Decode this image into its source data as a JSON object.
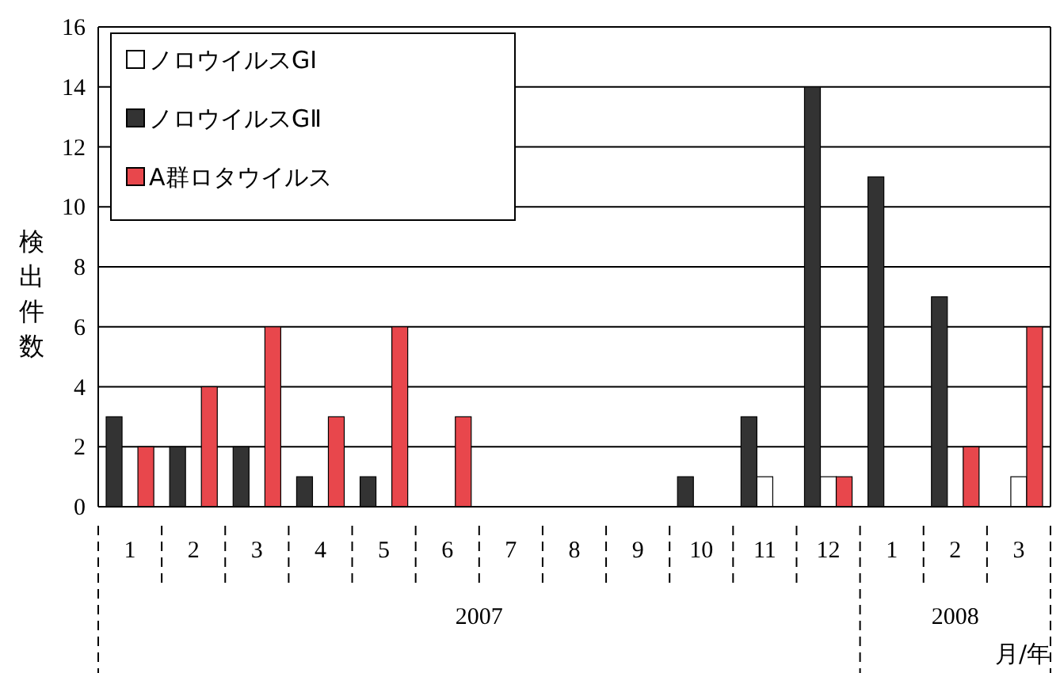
{
  "chart_data": {
    "type": "bar",
    "ylabel": "検出件数",
    "annotations": [
      "2007",
      "2008",
      "月/年"
    ],
    "categories": [
      "1",
      "2",
      "3",
      "4",
      "5",
      "6",
      "7",
      "8",
      "9",
      "10",
      "11",
      "12",
      "1",
      "2",
      "3"
    ],
    "series": [
      {
        "name": "ノロウイルスGⅠ",
        "color": "#ffffff",
        "values": [
          0,
          0,
          0,
          0,
          0,
          0,
          0,
          0,
          0,
          0,
          1,
          1,
          0,
          0,
          1
        ]
      },
      {
        "name": "ノロウイルスGⅡ",
        "color": "#333333",
        "values": [
          3,
          2,
          2,
          1,
          1,
          0,
          0,
          0,
          0,
          1,
          3,
          14,
          11,
          7,
          0
        ]
      },
      {
        "name": "A群ロタウイルス",
        "color": "#e8474c",
        "values": [
          2,
          4,
          6,
          3,
          6,
          3,
          0,
          0,
          0,
          0,
          0,
          1,
          0,
          2,
          6
        ]
      }
    ],
    "ylim": [
      0,
      16
    ],
    "yticks": [
      0,
      2,
      4,
      6,
      8,
      10,
      12,
      14,
      16
    ],
    "grid": "y",
    "legend": "top left"
  }
}
